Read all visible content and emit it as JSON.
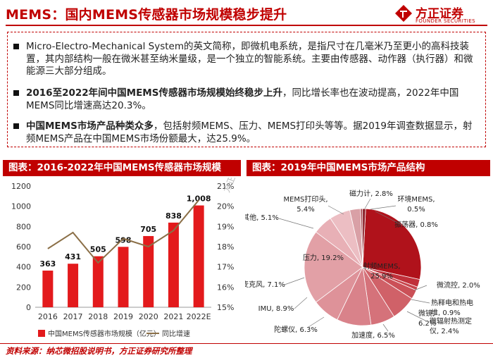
{
  "header": {
    "title": "MEMS：国内MEMS传感器市场规模稳步提升",
    "logo_cn": "方正证券",
    "logo_en": "FOUNDER SECURITIES"
  },
  "bullets": [
    {
      "bold": "",
      "text": "Micro-Electro-Mechanical System的英文简称，即微机电系统，是指尺寸在几毫米乃至更小的高科技装置，其内部结构一般在微米甚至纳米量级，是一个独立的智能系统。主要由传感器、动作器（执行器）和微能源三大部分组成。"
    },
    {
      "bold": "2016至2022年间中国MEMS传感器市场规模始终稳步上升",
      "text": "，同比增长率也在波动提高，2022年中国MEMS同比增速高达20.3%。"
    },
    {
      "bold": "中国MEMS市场产品种类众多",
      "text": "，包括射频MEMS、压力、MEMS打印头等等。据2019年调查数据显示，射频MEMS产品在中国MEMS市场份额最大，达25.9%。"
    }
  ],
  "left_section_title": "图表：2016-2022年中国MEMS传感器市场规模",
  "right_section_title": "图表：2019年中国MEMS市场产品结构",
  "watermark": "方正证券 陈杭",
  "footer": "资料来源：纳芯微招股说明书，方正证券研究所整理",
  "colors": {
    "brand_red": "#c00000",
    "bar_red": "#e31a1c",
    "line_brown": "#8b6f47"
  },
  "chart_data": [
    {
      "type": "bar",
      "categories": [
        "2016",
        "2017",
        "2018",
        "2019",
        "2020",
        "2021",
        "2022E"
      ],
      "series": [
        {
          "name": "中国MEMS传感器市场规模（亿元）",
          "type": "bar",
          "axis": "left",
          "values": [
            363,
            431,
            505,
            598,
            705,
            838,
            1008
          ]
        },
        {
          "name": "同比增速",
          "type": "line",
          "axis": "right",
          "values": [
            17.9,
            18.7,
            17.2,
            18.4,
            18.0,
            18.8,
            20.3
          ]
        }
      ],
      "data_labels": [
        "363",
        "431",
        "505",
        "598",
        "705",
        "838",
        "1,008"
      ],
      "ylim": [
        0,
        1200
      ],
      "yticks": [
        "0",
        "200",
        "400",
        "600",
        "800",
        "1000",
        "1200"
      ],
      "y2lim": [
        15,
        21
      ],
      "y2ticks": [
        "15%",
        "16%",
        "17%",
        "18%",
        "19%",
        "20%",
        "21%"
      ],
      "legend": "bottom"
    },
    {
      "type": "pie",
      "labels": [
        "射频MEMS",
        "微流控",
        "热释电和热电堆",
        "微辐射热测定仪",
        "加速度",
        "陀螺仪",
        "IMU",
        "麦克风",
        "压力",
        "其他",
        "MEMS打印头",
        "磁力计",
        "环境MEMS",
        "振荡器"
      ],
      "values": [
        25.9,
        2.0,
        0.9,
        2.4,
        6.5,
        6.3,
        8.9,
        7.1,
        19.2,
        5.1,
        5.4,
        2.8,
        0.5,
        0.8
      ],
      "display_labels": [
        "射频MEMS,\n25.9%",
        "微流控, 2.0%",
        "热释电和热电\n堆, 0.9%",
        "微辐射热测定\n仪, 2.4%",
        "加速度, 6.5%",
        "陀螺仪, 6.3%",
        "IMU, 8.9%",
        "麦克风, 7.1%",
        "压力, 19.2%",
        "其他, 5.1%",
        "MEMS打印头,\n5.4%",
        "磁力计, 2.8%",
        "环境MEMS,\n0.5%",
        "振荡器, 0.8%"
      ],
      "extra_label": "微镜,\n6.2%"
    }
  ]
}
